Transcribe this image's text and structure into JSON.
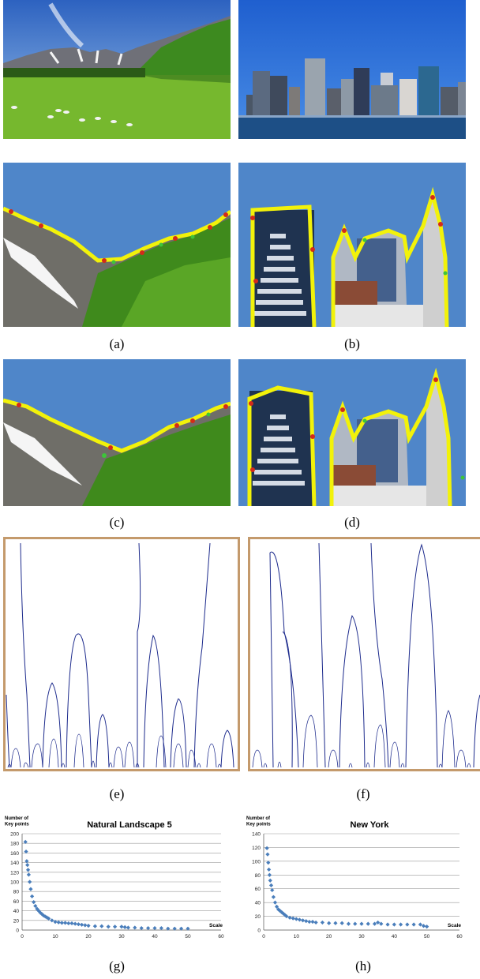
{
  "captions": {
    "a": "(a)",
    "b": "(b)",
    "c": "(c)",
    "d": "(d)",
    "e": "(e)",
    "f": "(f)",
    "g": "(g)",
    "h": "(h)"
  },
  "colors": {
    "sky": "#4f86c9",
    "contour": "#1c2a8c",
    "frame": "#c49a6c",
    "edge_yellow": "#f2f20a",
    "edge_red": "#d42a1a",
    "edge_green": "#3ec43a",
    "marker": "#4a7ebb"
  },
  "chart_data": [
    {
      "type": "scatter",
      "title": "Natural Landscape 5",
      "ylabel": "Number of Key points",
      "xlabel": "Scale",
      "xlim": [
        0,
        60
      ],
      "ylim": [
        0,
        200
      ],
      "xticks": [
        0,
        10,
        20,
        30,
        40,
        50,
        60
      ],
      "yticks": [
        0,
        20,
        40,
        60,
        80,
        100,
        120,
        140,
        160,
        180,
        200
      ],
      "grid": true,
      "x": [
        1,
        1.2,
        1.4,
        1.6,
        1.8,
        2,
        2.3,
        2.6,
        3,
        3.5,
        4,
        4.5,
        5,
        5.5,
        6,
        6.5,
        7,
        7.5,
        8,
        9,
        10,
        11,
        12,
        13,
        14,
        15,
        16,
        17,
        18,
        19,
        20,
        22,
        24,
        26,
        28,
        30,
        31,
        32,
        34,
        36,
        38,
        40,
        42,
        44,
        46,
        48,
        50
      ],
      "y": [
        183,
        163,
        143,
        135,
        125,
        115,
        100,
        85,
        70,
        58,
        50,
        44,
        40,
        36,
        33,
        30,
        28,
        26,
        24,
        20,
        17,
        16,
        15,
        15,
        14,
        14,
        13,
        12,
        11,
        10,
        9,
        8,
        8,
        7,
        7,
        7,
        6,
        5,
        5,
        4,
        4,
        4,
        4,
        3,
        3,
        3,
        3
      ]
    },
    {
      "type": "scatter",
      "title": "New York",
      "ylabel": "Number of Key points",
      "xlabel": "Scale",
      "xlim": [
        0,
        60
      ],
      "ylim": [
        0,
        140
      ],
      "xticks": [
        0,
        10,
        20,
        30,
        40,
        50,
        60
      ],
      "yticks": [
        0,
        20,
        40,
        60,
        80,
        100,
        120,
        140
      ],
      "grid": true,
      "x": [
        1,
        1.2,
        1.4,
        1.6,
        1.8,
        2,
        2.3,
        2.6,
        3,
        3.5,
        4,
        4.5,
        5,
        5.5,
        6,
        6.5,
        7,
        8,
        9,
        10,
        11,
        12,
        13,
        14,
        15,
        16,
        18,
        20,
        22,
        24,
        26,
        28,
        30,
        32,
        34,
        35,
        36,
        38,
        40,
        42,
        44,
        46,
        48,
        49,
        50
      ],
      "y": [
        119,
        110,
        98,
        88,
        80,
        72,
        65,
        58,
        48,
        40,
        34,
        30,
        28,
        26,
        24,
        22,
        20,
        18,
        17,
        16,
        15,
        14,
        13,
        12,
        12,
        11,
        11,
        10,
        10,
        10,
        9,
        9,
        9,
        9,
        9,
        11,
        9,
        8,
        8,
        8,
        8,
        8,
        8,
        6,
        5
      ]
    }
  ]
}
